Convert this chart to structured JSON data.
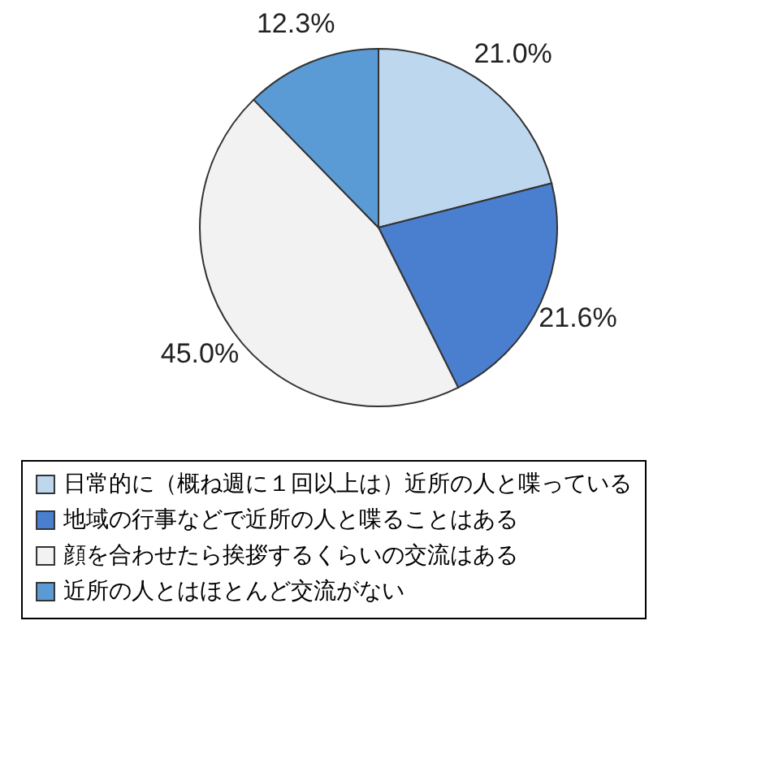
{
  "chart_data": {
    "type": "pie",
    "categories": [
      "日常的に（概ね週に１回以上は）近所の人と喋っている",
      "地域の行事などで近所の人と喋ることはある",
      "顔を合わせたら挨拶するくらいの交流はある",
      "近所の人とはほとんど交流がない"
    ],
    "values": [
      21.0,
      21.6,
      45.0,
      12.3
    ],
    "colors": [
      "#bdd7ee",
      "#4a7fcf",
      "#f2f2f2",
      "#5b9bd5"
    ],
    "value_labels": [
      "21.0%",
      "21.6%",
      "45.0%",
      "12.3%"
    ],
    "legend": "bottom"
  }
}
